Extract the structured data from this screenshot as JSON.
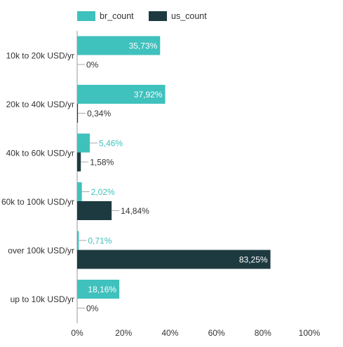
{
  "chart_data": {
    "type": "bar",
    "orientation": "horizontal",
    "categories": [
      "10k to 20k USD/yr",
      "20k to 40k USD/yr",
      "40k to 60k USD/yr",
      "60k to 100k USD/yr",
      "over 100k USD/yr",
      "up to 10k USD/yr"
    ],
    "series": [
      {
        "name": "br_count",
        "values": [
          35.73,
          37.92,
          5.46,
          2.02,
          0.71,
          18.16
        ],
        "labels": [
          "35,73%",
          "37,92%",
          "5,46%",
          "2,02%",
          "0,71%",
          "18,16%"
        ],
        "color": "#3fc1bd"
      },
      {
        "name": "us_count",
        "values": [
          0,
          0.34,
          1.58,
          14.84,
          83.25,
          0
        ],
        "labels": [
          "0%",
          "0,34%",
          "1,58%",
          "14,84%",
          "83,25%",
          "0%"
        ],
        "color": "#1d3a40"
      }
    ],
    "xlim": [
      0,
      100
    ],
    "xticks": [
      "0%",
      "20%",
      "40%",
      "60%",
      "80%",
      "100%"
    ],
    "legend_position": "top-left",
    "grid": false
  }
}
